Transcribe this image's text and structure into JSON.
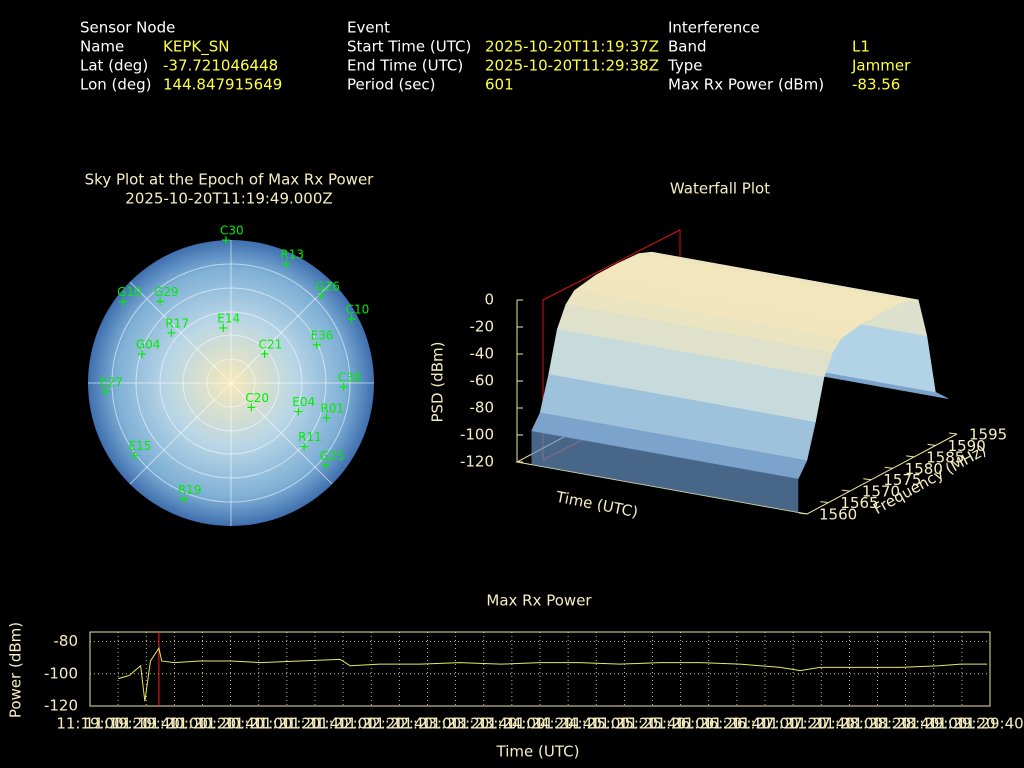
{
  "header": {
    "sensor": {
      "title": "Sensor Node",
      "fields": [
        [
          "Name",
          "KEPK_SN"
        ],
        [
          "Lat (deg)",
          "-37.721046448"
        ],
        [
          "Lon (deg)",
          "144.847915649"
        ]
      ]
    },
    "event": {
      "title": "Event",
      "fields": [
        [
          "Start Time (UTC)",
          "2025-10-20T11:19:37Z"
        ],
        [
          "End Time (UTC)",
          "2025-10-20T11:29:38Z"
        ],
        [
          "Period (sec)",
          "601"
        ]
      ]
    },
    "interference": {
      "title": "Interference",
      "fields": [
        [
          "Band",
          "L1"
        ],
        [
          "Type",
          "Jammer"
        ],
        [
          "Max Rx Power (dBm)",
          "-83.56"
        ]
      ]
    }
  },
  "chart_data": [
    {
      "type": "polar-scatter",
      "title": "Sky Plot at the Epoch of Max Rx Power",
      "subtitle": "2025-10-20T11:19:49.000Z",
      "categories": [
        "C30",
        "R13",
        "G26",
        "C10",
        "E36",
        "C38",
        "R01",
        "E04",
        "R11",
        "G25",
        "C20",
        "C21",
        "E14",
        "R19",
        "E15",
        "G04",
        "E27",
        "G10",
        "R17",
        "G29"
      ],
      "azimuth": [
        358,
        25,
        46,
        62,
        66,
        92,
        110,
        113,
        131,
        131,
        140,
        49,
        352,
        202,
        233,
        288,
        266,
        307,
        310,
        319
      ],
      "elevation": [
        0,
        7.5,
        11,
        4,
        31,
        19,
        26,
        44,
        29,
        11,
        70,
        62,
        55,
        11,
        14,
        31,
        11,
        5,
        41,
        22
      ],
      "color": "#00ee00"
    },
    {
      "type": "surface",
      "title": "Waterfall Plot",
      "xlabel": "Time (UTC)",
      "ylabel": "Frequency (MHz)",
      "zlabel": "PSD (dBm)",
      "frequencies": [
        1560,
        1562,
        1564,
        1566,
        1568,
        1570,
        1575,
        1580,
        1585,
        1588,
        1590,
        1592,
        1595
      ],
      "values": [
        -95,
        -85,
        -60,
        -30,
        -15,
        -8,
        -5,
        -5,
        -6,
        -10,
        -40,
        -85,
        -95
      ],
      "ylim": [
        1560,
        1595
      ],
      "yticks": [
        1560,
        1565,
        1570,
        1575,
        1580,
        1585,
        1590,
        1595
      ],
      "zlim": [
        -120,
        0
      ],
      "zticks": [
        0,
        -20,
        -40,
        -60,
        -80,
        -100,
        -120
      ]
    },
    {
      "type": "line",
      "title": "Max Rx Power",
      "xlabel": "Time (UTC)",
      "ylabel": "Power (dBm)",
      "color": "#e8e860",
      "marker": "11:19:49",
      "marker_color": "#ff2020",
      "grid": true,
      "x": [
        "11:19:20",
        "11:19:28",
        "11:19:36",
        "11:19:39",
        "11:19:43",
        "11:19:49",
        "11:19:51",
        "11:20:00",
        "11:20:18",
        "11:20:40",
        "11:21:01",
        "11:21:29",
        "11:21:58",
        "11:22:05",
        "11:22:26",
        "11:22:55",
        "11:23:23",
        "11:23:52",
        "11:24:20",
        "11:24:48",
        "11:25:17",
        "11:25:45",
        "11:26:14",
        "11:26:42",
        "11:27:11",
        "11:27:25",
        "11:27:39",
        "11:28:08",
        "11:28:36",
        "11:29:04",
        "11:29:19",
        "11:29:38"
      ],
      "values": [
        -103,
        -101,
        -95,
        -117,
        -92,
        -84,
        -92,
        -93,
        -92,
        -92,
        -93,
        -92,
        -91,
        -95,
        -94,
        -94,
        -93,
        -94,
        -93,
        -93,
        -94,
        -93,
        -93,
        -94,
        -96,
        -98,
        -96,
        -96,
        -96,
        -95,
        -94,
        -94
      ],
      "xlim": [
        "11:19:00",
        "11:29:40"
      ],
      "xticks": [
        "11:19:00",
        "11:19:20",
        "11:19:40",
        "11:20:00",
        "11:20:20",
        "11:20:40",
        "11:21:00",
        "11:21:20",
        "11:21:40",
        "11:22:00",
        "11:22:20",
        "11:22:40",
        "11:23:00",
        "11:23:20",
        "11:23:40",
        "11:24:00",
        "11:24:20",
        "11:24:40",
        "11:25:00",
        "11:25:20",
        "11:25:40",
        "11:26:00",
        "11:26:20",
        "11:26:40",
        "11:27:00",
        "11:27:20",
        "11:27:40",
        "11:28:00",
        "11:28:20",
        "11:28:40",
        "11:29:00",
        "11:29:20",
        "11:29:40"
      ],
      "ylim": [
        -120,
        -74
      ],
      "yticks": [
        -80,
        -100,
        -120
      ]
    }
  ]
}
